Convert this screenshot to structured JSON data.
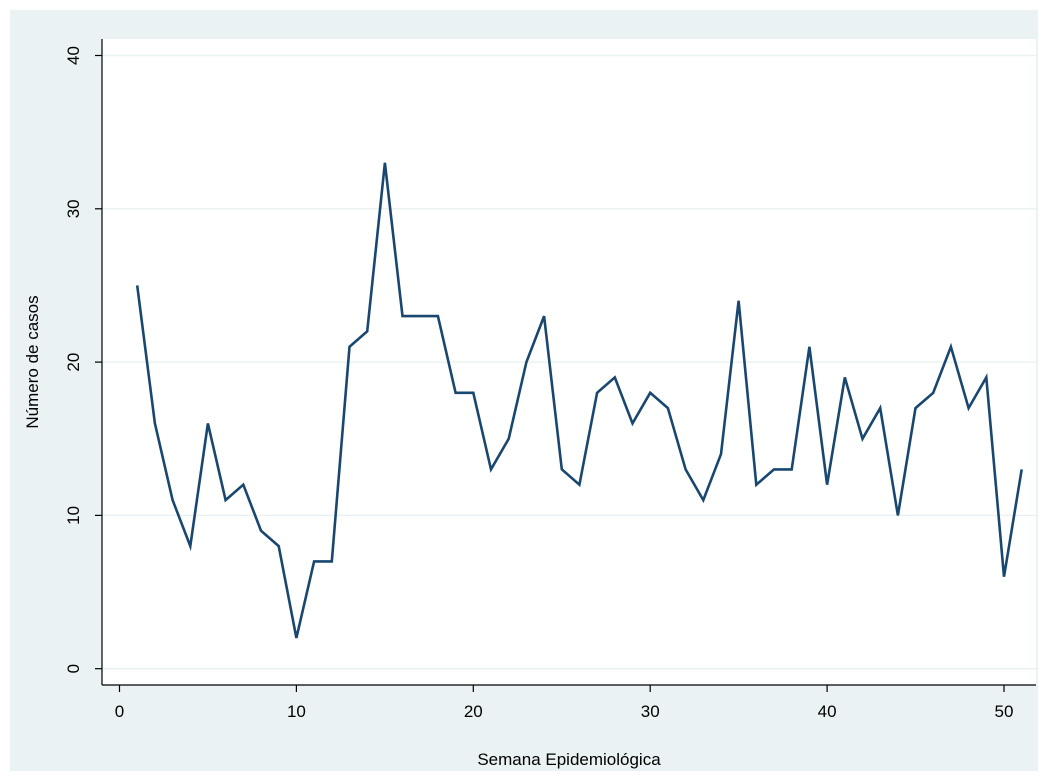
{
  "colors": {
    "outer_background": "#eaf2f3",
    "plot_background": "#ffffff",
    "gridline": "#eaf2f3",
    "line": "#1a476f",
    "axis": "#000000"
  },
  "chart_data": {
    "type": "line",
    "xlabel": "Semana Epidemiológica",
    "ylabel": "Número de casos",
    "xlim": [
      0,
      52
    ],
    "ylim": [
      -1,
      41
    ],
    "x_ticks": [
      0,
      10,
      20,
      30,
      40,
      50
    ],
    "y_ticks": [
      0,
      10,
      20,
      30,
      40
    ],
    "grid": true,
    "series": [
      {
        "x": [
          1,
          2,
          3,
          4,
          5,
          6,
          7,
          8,
          9,
          10,
          11,
          12,
          13,
          14,
          15,
          16,
          17,
          18,
          19,
          20,
          21,
          22,
          23,
          24,
          25,
          26,
          27,
          28,
          29,
          30,
          31,
          32,
          33,
          34,
          35,
          36,
          37,
          38,
          39,
          40,
          41,
          42,
          43,
          44,
          45,
          46,
          47,
          48,
          49,
          50,
          51
        ],
        "values": [
          25,
          16,
          11,
          8,
          16,
          11,
          12,
          9,
          8,
          2,
          7,
          7,
          21,
          22,
          33,
          23,
          23,
          23,
          18,
          18,
          13,
          15,
          20,
          23,
          13,
          12,
          18,
          19,
          16,
          18,
          17,
          13,
          11,
          14,
          24,
          12,
          13,
          13,
          21,
          12,
          19,
          15,
          17,
          10,
          17,
          18,
          21,
          17,
          19,
          6,
          13
        ]
      }
    ]
  }
}
